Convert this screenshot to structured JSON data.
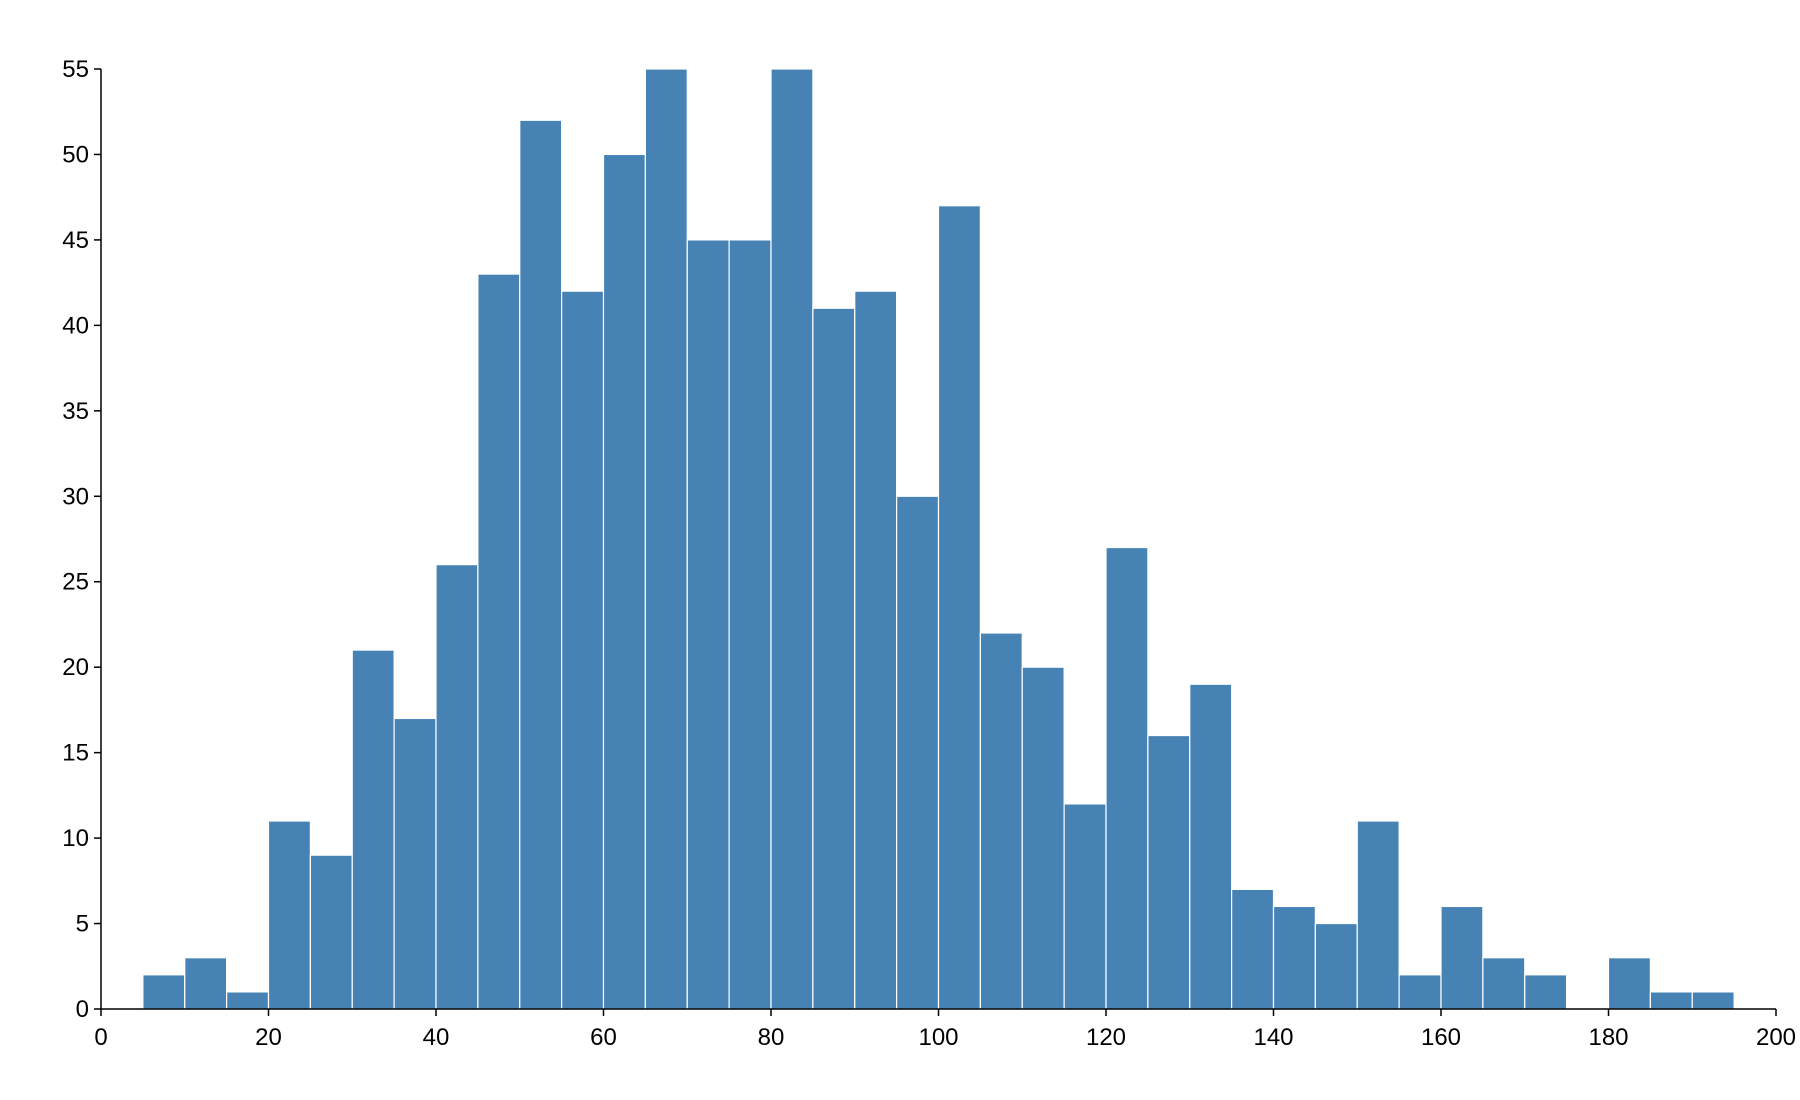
{
  "chart_data": {
    "type": "histogram",
    "bins": [
      5,
      10,
      15,
      20,
      25,
      30,
      35,
      40,
      45,
      50,
      55,
      60,
      65,
      70,
      75,
      80,
      85,
      90,
      95,
      100,
      105,
      110,
      115,
      120,
      125,
      130,
      135,
      140,
      145,
      150,
      155,
      160,
      165,
      170,
      175,
      180,
      185,
      190,
      195
    ],
    "values": [
      2,
      3,
      1,
      11,
      9,
      21,
      17,
      26,
      43,
      52,
      42,
      50,
      55,
      45,
      45,
      55,
      41,
      42,
      30,
      47,
      22,
      20,
      12,
      27,
      16,
      19,
      7,
      6,
      5,
      11,
      2,
      6,
      3,
      2,
      0,
      3,
      1,
      1
    ],
    "color": "#4682b4",
    "xlim": [
      0,
      200
    ],
    "xticks": [
      0,
      20,
      40,
      60,
      80,
      100,
      120,
      140,
      160,
      180,
      200
    ],
    "ylim": [
      0,
      55
    ],
    "yticks": [
      0,
      5,
      10,
      15,
      20,
      25,
      30,
      35,
      40,
      45,
      50,
      55
    ],
    "grid": false
  }
}
